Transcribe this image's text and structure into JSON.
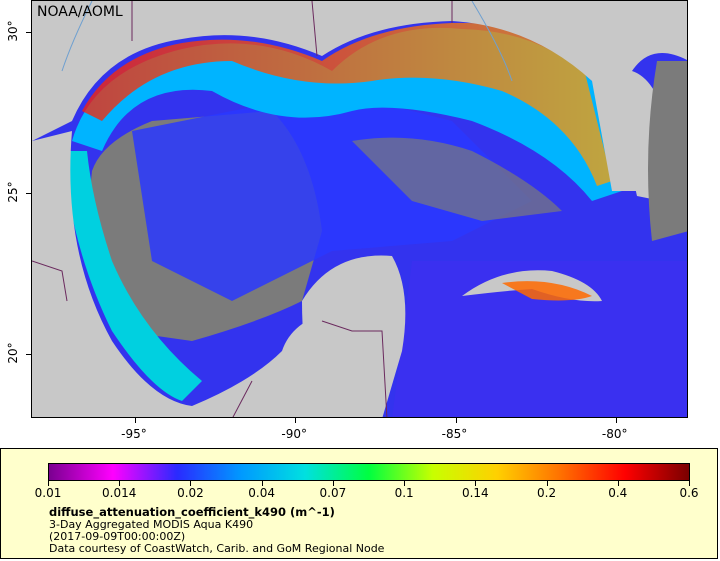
{
  "map": {
    "credit": "NOAA/AOML",
    "lon_ticks": [
      {
        "label": "-95°",
        "lon": -95
      },
      {
        "label": "-90°",
        "lon": -90
      },
      {
        "label": "-85°",
        "lon": -85
      },
      {
        "label": "-80°",
        "lon": -80
      }
    ],
    "lat_ticks": [
      {
        "label": "30°",
        "lat": 30
      },
      {
        "label": "25°",
        "lat": 25
      },
      {
        "label": "20°",
        "lat": 20
      }
    ],
    "lon_range": [
      -98.25,
      -77.75
    ],
    "lat_range": [
      18.0,
      31.0
    ],
    "colors": {
      "land": "#c8c8c8",
      "nodata": "#7b7b7b",
      "borders": "#6b2a5e",
      "rivers": "#6fa0d0"
    }
  },
  "colorbar": {
    "ticks": [
      "0.01",
      "0.014",
      "0.02",
      "0.04",
      "0.07",
      "0.1",
      "0.14",
      "0.2",
      "0.4",
      "0.6"
    ],
    "palette": [
      "#7a0090",
      "#ff00ff",
      "#2a2aff",
      "#0099ff",
      "#00e0e0",
      "#00ff40",
      "#c8ff00",
      "#ffd000",
      "#ff7000",
      "#ff0000",
      "#7a0000"
    ]
  },
  "legend": {
    "variable": "diffuse_attenuation_coefficient_k490 (m^-1)",
    "description": "3-Day Aggregated MODIS Aqua K490",
    "time": "(2017-09-09T00:00:00Z)",
    "courtesy": "Data courtesy of CoastWatch, Carib. and GoM Regional Node"
  }
}
